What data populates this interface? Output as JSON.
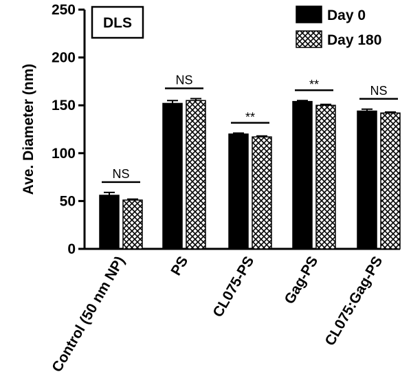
{
  "chart_data": {
    "type": "bar",
    "tag": "DLS",
    "ylabel": "Ave. Diameter (nm)",
    "xlabel": "",
    "ylim": [
      0,
      250
    ],
    "yticks": [
      0,
      50,
      100,
      150,
      200,
      250
    ],
    "categories": [
      "Control (50 nm NP)",
      "PS",
      "CL075-PS",
      "Gag-PS",
      "CL075:Gag-PS"
    ],
    "series": [
      {
        "name": "Day 0",
        "fill": "solid-black",
        "values": [
          56,
          152,
          120,
          154,
          144
        ],
        "errors": [
          3,
          3,
          1,
          1,
          2
        ]
      },
      {
        "name": "Day 180",
        "fill": "black-white-crosshatch",
        "values": [
          51,
          155,
          117,
          150,
          142
        ],
        "errors": [
          1,
          2,
          1,
          1,
          1
        ]
      }
    ],
    "significance": [
      "NS",
      "NS",
      "**",
      "**",
      "NS"
    ],
    "legend_position": "top-right",
    "grid": false
  }
}
